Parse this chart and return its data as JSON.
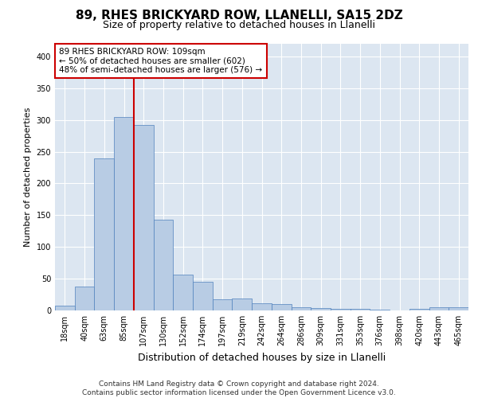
{
  "title1": "89, RHES BRICKYARD ROW, LLANELLI, SA15 2DZ",
  "title2": "Size of property relative to detached houses in Llanelli",
  "xlabel": "Distribution of detached houses by size in Llanelli",
  "ylabel": "Number of detached properties",
  "categories": [
    "18sqm",
    "40sqm",
    "63sqm",
    "85sqm",
    "107sqm",
    "130sqm",
    "152sqm",
    "174sqm",
    "197sqm",
    "219sqm",
    "242sqm",
    "264sqm",
    "286sqm",
    "309sqm",
    "331sqm",
    "353sqm",
    "376sqm",
    "398sqm",
    "420sqm",
    "443sqm",
    "465sqm"
  ],
  "values": [
    8,
    38,
    240,
    305,
    292,
    143,
    56,
    45,
    18,
    19,
    11,
    10,
    5,
    4,
    2,
    2,
    1,
    0,
    2,
    5,
    5
  ],
  "bar_color": "#b8cce4",
  "bar_edge_color": "#4f81bd",
  "vline_index": 4,
  "vline_color": "#cc0000",
  "annotation_text": "89 RHES BRICKYARD ROW: 109sqm\n← 50% of detached houses are smaller (602)\n48% of semi-detached houses are larger (576) →",
  "annotation_box_color": "#ffffff",
  "annotation_box_edge": "#cc0000",
  "footer": "Contains HM Land Registry data © Crown copyright and database right 2024.\nContains public sector information licensed under the Open Government Licence v3.0.",
  "ylim": [
    0,
    420
  ],
  "background_color": "#dce6f1",
  "title1_fontsize": 11,
  "title2_fontsize": 9,
  "xlabel_fontsize": 9,
  "ylabel_fontsize": 8,
  "tick_fontsize": 7,
  "footer_fontsize": 6.5
}
